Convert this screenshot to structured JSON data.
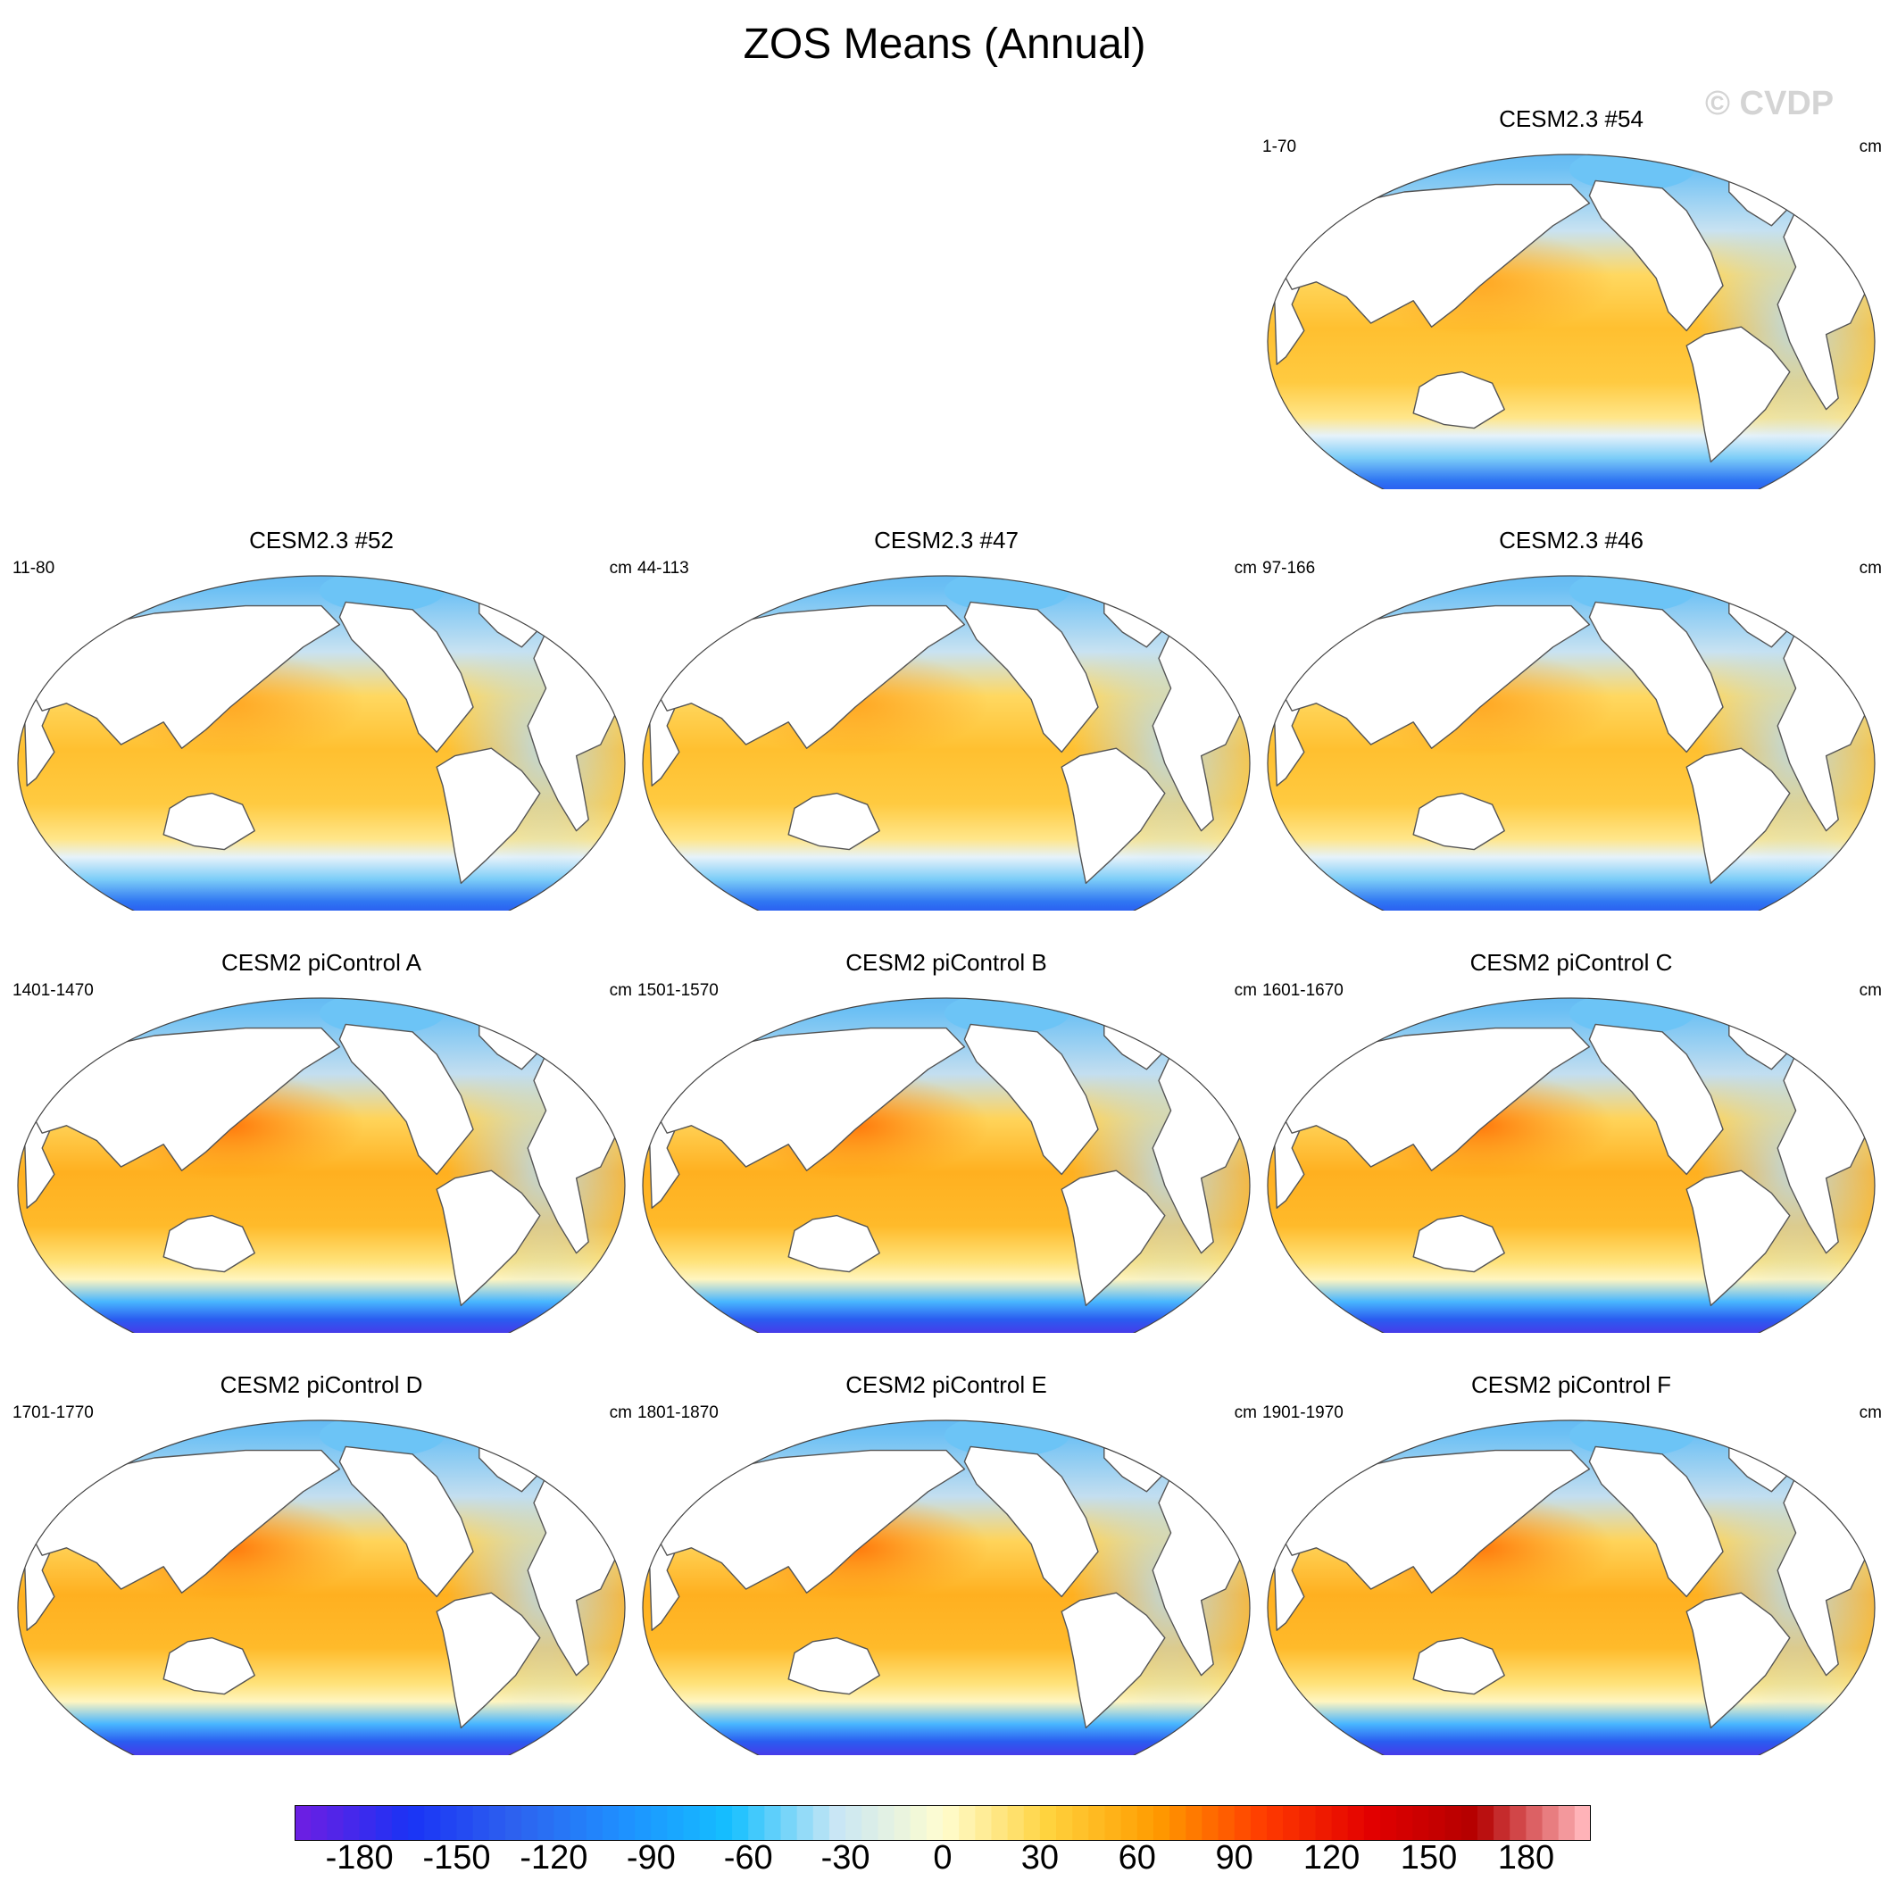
{
  "figure": {
    "title": "ZOS Means (Annual)",
    "watermark": "© CVDP"
  },
  "panels": [
    {
      "id": "cesm23-54",
      "title": "CESM2.3 #54",
      "period": "1-70",
      "units": "cm",
      "variant": "cesm23"
    },
    {
      "id": "cesm23-52",
      "title": "CESM2.3 #52",
      "period": "11-80",
      "units": "cm",
      "variant": "cesm23"
    },
    {
      "id": "cesm23-47",
      "title": "CESM2.3 #47",
      "period": "44-113",
      "units": "cm",
      "variant": "cesm23"
    },
    {
      "id": "cesm23-46",
      "title": "CESM2.3 #46",
      "period": "97-166",
      "units": "cm",
      "variant": "cesm23"
    },
    {
      "id": "pic-a",
      "title": "CESM2 piControl A",
      "period": "1401-1470",
      "units": "cm",
      "variant": "picontrol"
    },
    {
      "id": "pic-b",
      "title": "CESM2 piControl B",
      "period": "1501-1570",
      "units": "cm",
      "variant": "picontrol"
    },
    {
      "id": "pic-c",
      "title": "CESM2 piControl C",
      "period": "1601-1670",
      "units": "cm",
      "variant": "picontrol"
    },
    {
      "id": "pic-d",
      "title": "CESM2 piControl D",
      "period": "1701-1770",
      "units": "cm",
      "variant": "picontrol"
    },
    {
      "id": "pic-e",
      "title": "CESM2 piControl E",
      "period": "1801-1870",
      "units": "cm",
      "variant": "picontrol"
    },
    {
      "id": "pic-f",
      "title": "CESM2 piControl F",
      "period": "1901-1970",
      "units": "cm",
      "variant": "picontrol"
    }
  ],
  "colorbar": {
    "min": -200,
    "max": 200,
    "step": 5,
    "tick_labels": [
      "-180",
      "-150",
      "-120",
      "-90",
      "-60",
      "-30",
      "0",
      "30",
      "60",
      "90",
      "120",
      "150",
      "180"
    ],
    "tick_values": [
      -180,
      -150,
      -120,
      -90,
      -60,
      -30,
      0,
      30,
      60,
      90,
      120,
      150,
      180
    ],
    "colors": [
      "#6a1fe3",
      "#1a33f5",
      "#2d62ef",
      "#1e90ff",
      "#14bfff",
      "#c8e6f5",
      "#fffdd0",
      "#ffd23c",
      "#ff9c00",
      "#ff3c00",
      "#e30000",
      "#b30000",
      "#ffb3b8"
    ]
  }
}
